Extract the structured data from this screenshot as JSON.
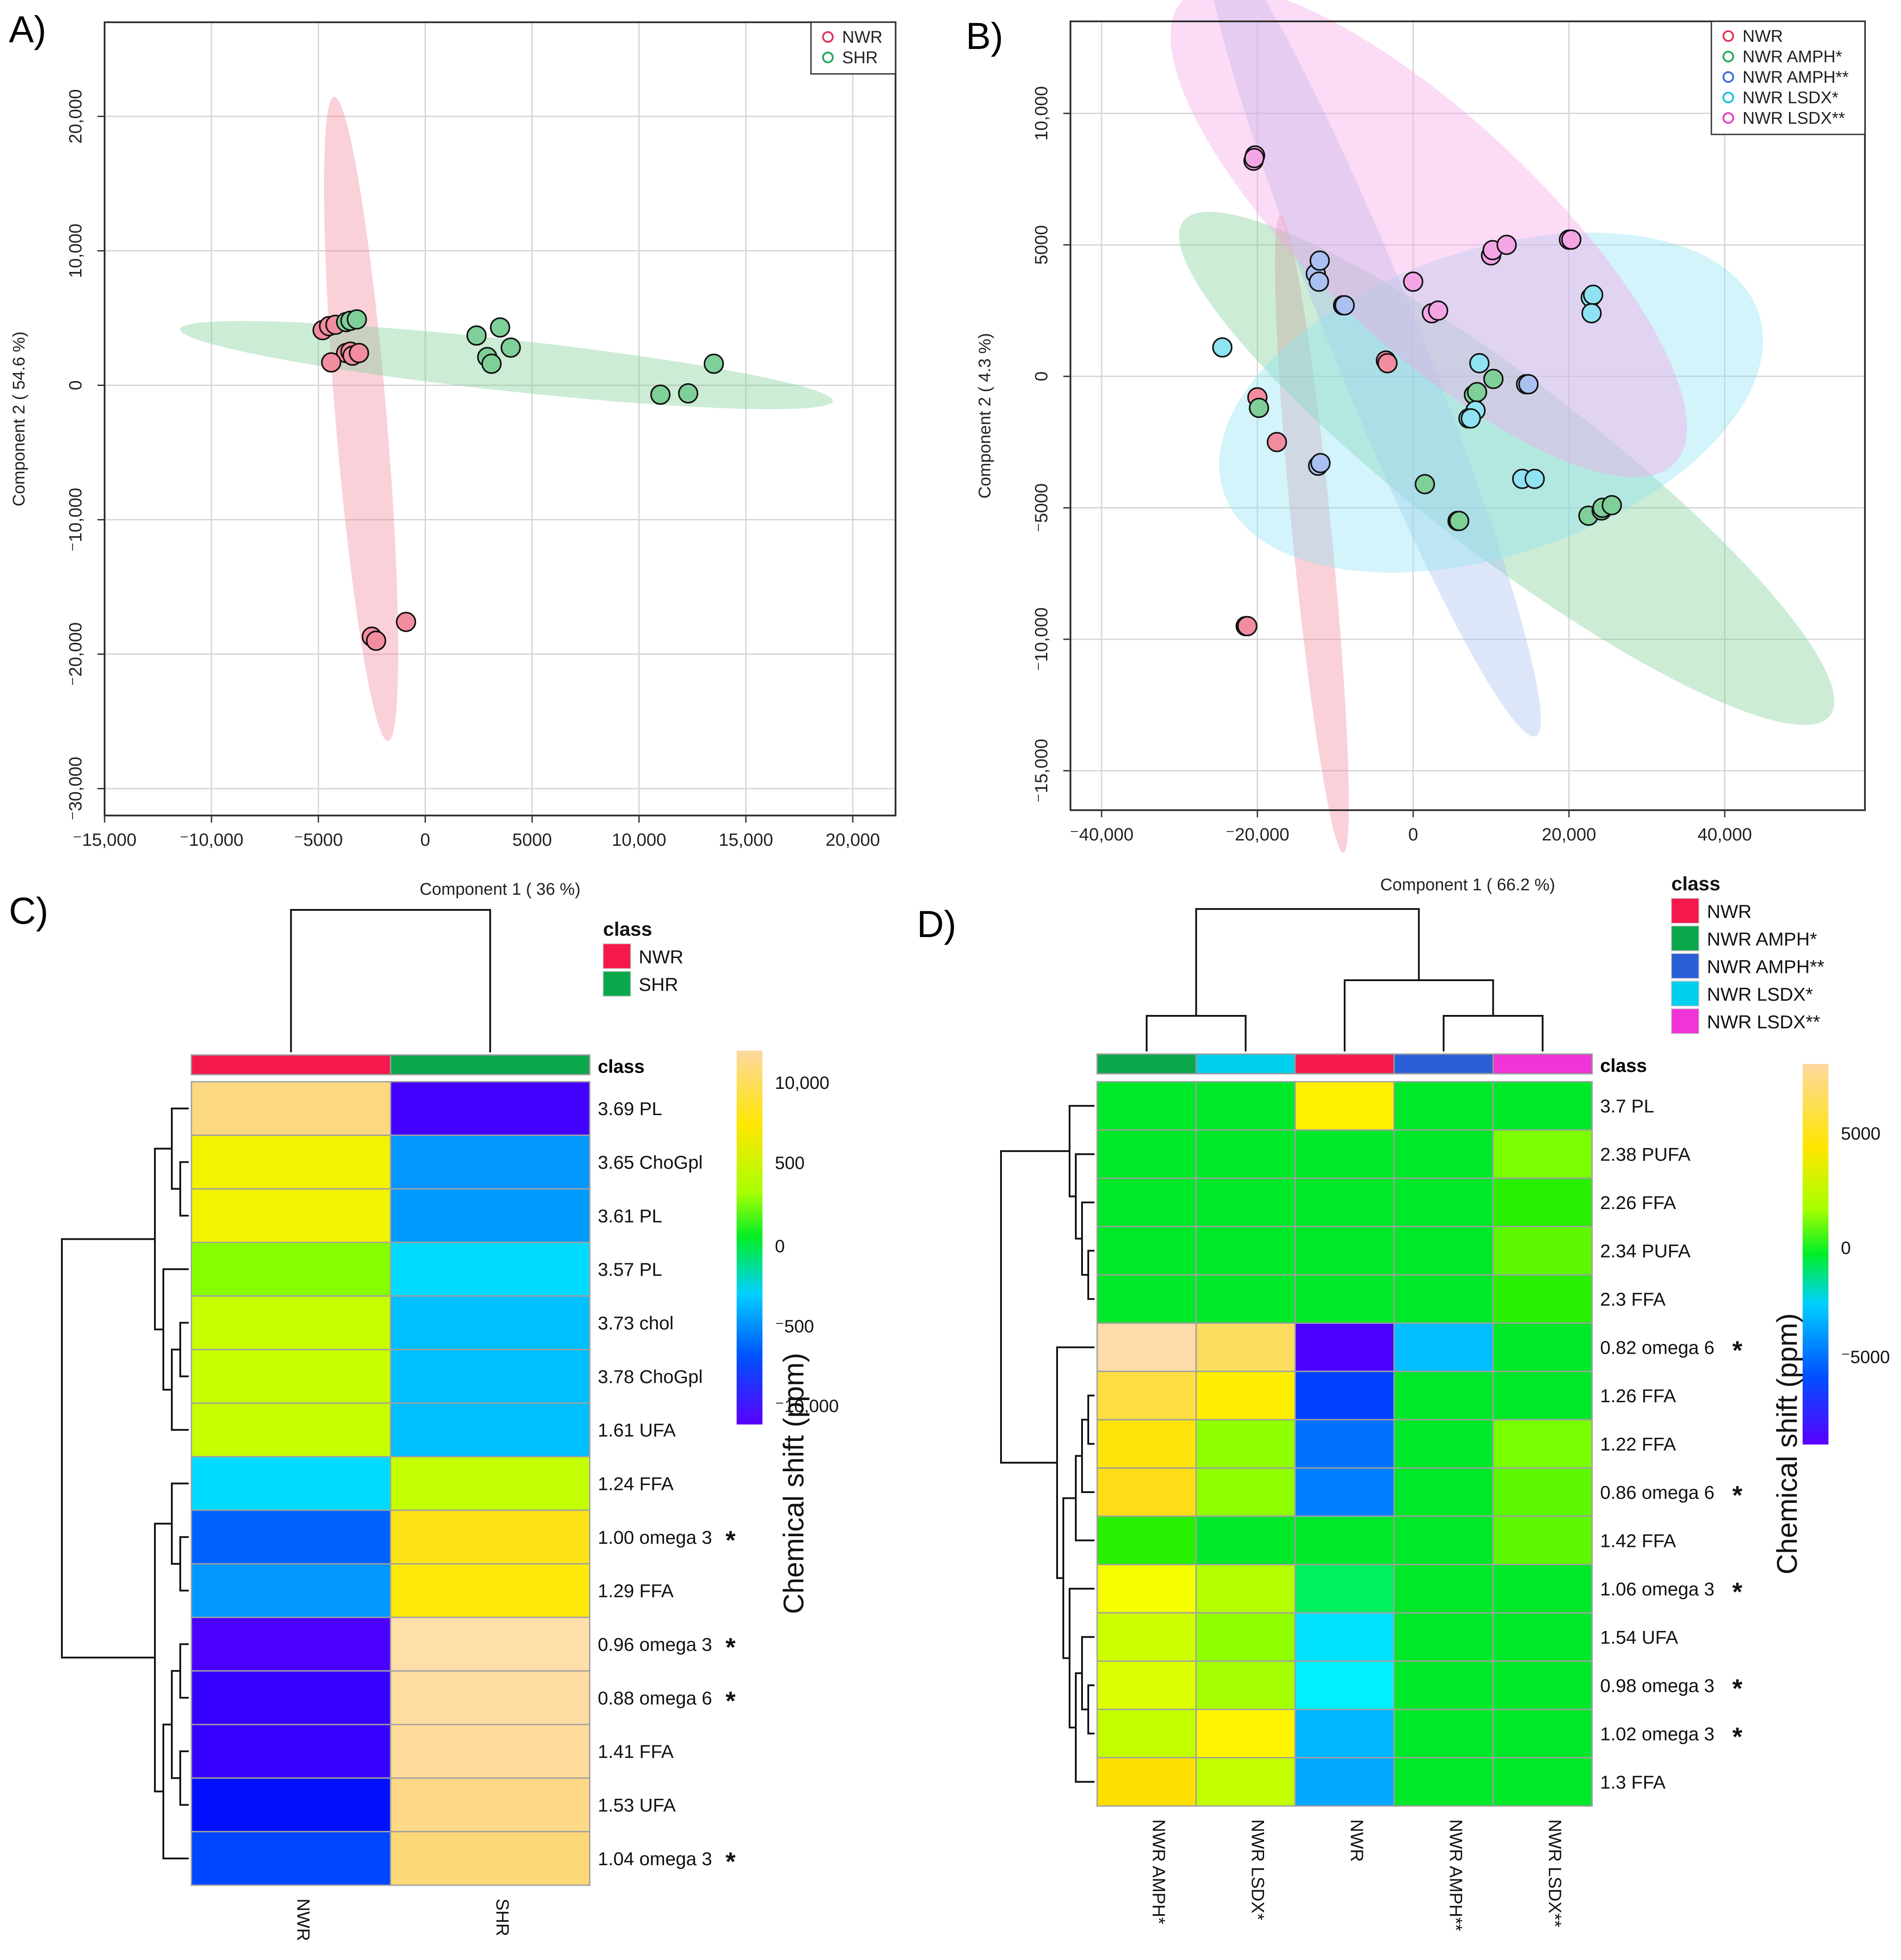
{
  "figure": {
    "panel_labels": [
      "A)",
      "B)",
      "C)",
      "D)"
    ]
  },
  "chart_data": [
    {
      "panel": "A",
      "type": "scatter",
      "xlabel": "Component 1 ( 36 %)",
      "ylabel": "Component 2 ( 54.6 %)",
      "xlim": [
        -15000,
        22000
      ],
      "ylim": [
        -32000,
        27000
      ],
      "xticks": [
        -15000,
        -10000,
        -5000,
        0,
        5000,
        10000,
        15000,
        20000
      ],
      "xtick_labels": [
        "-15,000",
        "-10,000",
        "-5000",
        "0",
        "5000",
        "10,000",
        "15,000",
        "20,000"
      ],
      "yticks": [
        -30000,
        -20000,
        -10000,
        0,
        10000,
        20000
      ],
      "ytick_labels": [
        "-30,000",
        "-20,000",
        "-10,000",
        "0",
        "10,000",
        "20,000"
      ],
      "legend_position": "top-right",
      "series": [
        {
          "name": "NWR",
          "color": "#e8315a",
          "fill": "#f28da0",
          "ellipse": {
            "cx": -3000,
            "cy": -2500,
            "angle": -87,
            "rx": 24000,
            "ry": 1200
          },
          "points": [
            [
              -4800,
              4100
            ],
            [
              -4500,
              4400
            ],
            [
              -4200,
              4500
            ],
            [
              -3700,
              2400
            ],
            [
              -3500,
              2500
            ],
            [
              -3400,
              2200
            ],
            [
              -3100,
              2400
            ],
            [
              -4400,
              1700
            ],
            [
              -2500,
              -18700
            ],
            [
              -2300,
              -19000
            ],
            [
              -900,
              -17600
            ]
          ]
        },
        {
          "name": "SHR",
          "color": "#22a85a",
          "fill": "#7fcf98",
          "ellipse": {
            "cx": 3800,
            "cy": 1500,
            "angle": -10,
            "rx": 15500,
            "ry": 1900
          },
          "points": [
            [
              -3700,
              4700
            ],
            [
              -3500,
              4800
            ],
            [
              -3200,
              4900
            ],
            [
              2400,
              3700
            ],
            [
              3500,
              4300
            ],
            [
              4000,
              2800
            ],
            [
              2900,
              2100
            ],
            [
              3100,
              1600
            ],
            [
              11000,
              -700
            ],
            [
              12300,
              -600
            ],
            [
              13500,
              1600
            ]
          ]
        }
      ]
    },
    {
      "panel": "B",
      "type": "scatter",
      "xlabel": "Component 1 ( 66.2 %)",
      "ylabel": "Component 2 ( 4.3 %)",
      "xlim": [
        -44000,
        58000
      ],
      "ylim": [
        -16500,
        13500
      ],
      "xticks": [
        -40000,
        -20000,
        0,
        20000,
        40000
      ],
      "xtick_labels": [
        "-40,000",
        "-20,000",
        "0",
        "20,000",
        "40,000"
      ],
      "yticks": [
        -15000,
        -10000,
        -5000,
        0,
        5000,
        10000
      ],
      "ytick_labels": [
        "-15,000",
        "-10,000",
        "-5000",
        "0",
        "5000",
        "10,000"
      ],
      "legend_position": "top-right",
      "series": [
        {
          "name": "NWR",
          "color": "#e8315a",
          "fill": "#f28da0",
          "ellipse": {
            "cx": -13000,
            "cy": -6000,
            "angle": -71,
            "rx": 12800,
            "ry": 2400
          },
          "points": [
            [
              -20000,
              -800
            ],
            [
              -17500,
              -2500
            ],
            [
              -3500,
              600
            ],
            [
              -3300,
              500
            ],
            [
              -21500,
              -9500
            ],
            [
              -21300,
              -9500
            ]
          ]
        },
        {
          "name": "NWR AMPH*",
          "color": "#22a85a",
          "fill": "#7fcf98",
          "ellipse": {
            "cx": 12000,
            "cy": -3500,
            "angle": -12,
            "rx": 43000,
            "ry": 4000
          },
          "points": [
            [
              -19800,
              -1200
            ],
            [
              1500,
              -4100
            ],
            [
              5700,
              -5500
            ],
            [
              5900,
              -5500
            ],
            [
              7800,
              -700
            ],
            [
              8200,
              -600
            ],
            [
              10300,
              -100
            ],
            [
              22500,
              -5300
            ],
            [
              24200,
              -5100
            ],
            [
              24300,
              -5000
            ],
            [
              25500,
              -4900
            ]
          ]
        },
        {
          "name": "NWR AMPH**",
          "color": "#4169d8",
          "fill": "#a9c0f0",
          "ellipse": {
            "cx": -5000,
            "cy": 1500,
            "angle": -35,
            "rx": 26000,
            "ry": 3600
          },
          "points": [
            [
              -12500,
              3900
            ],
            [
              -12000,
              4400
            ],
            [
              -12100,
              3600
            ],
            [
              -9000,
              2700
            ],
            [
              -8800,
              2700
            ],
            [
              -12200,
              -3400
            ],
            [
              -11900,
              -3300
            ],
            [
              14500,
              -300
            ],
            [
              14800,
              -300
            ]
          ]
        },
        {
          "name": "NWR LSDX*",
          "color": "#19c0e0",
          "fill": "#8fe3f2",
          "ellipse": {
            "cx": 10000,
            "cy": -1000,
            "angle": 4,
            "rx": 35000,
            "ry": 6000
          },
          "points": [
            [
              -24500,
              1100
            ],
            [
              8500,
              500
            ],
            [
              8000,
              -1300
            ],
            [
              7100,
              -1600
            ],
            [
              7400,
              -1600
            ],
            [
              14000,
              -3900
            ],
            [
              15600,
              -3900
            ],
            [
              22800,
              3000
            ],
            [
              23100,
              3100
            ],
            [
              22900,
              2400
            ]
          ]
        },
        {
          "name": "NWR LSDX**",
          "color": "#e83cc8",
          "fill": "#f5a5e6",
          "ellipse": {
            "cx": 2000,
            "cy": 5500,
            "angle": -13,
            "rx": 34000,
            "ry": 5500
          },
          "points": [
            [
              -20500,
              8200
            ],
            [
              -20300,
              8400
            ],
            [
              -20400,
              8300
            ],
            [
              0,
              3600
            ],
            [
              2400,
              2400
            ],
            [
              3200,
              2500
            ],
            [
              10000,
              4600
            ],
            [
              10200,
              4800
            ],
            [
              12000,
              5000
            ],
            [
              20000,
              5200
            ],
            [
              20300,
              5200
            ]
          ]
        }
      ]
    },
    {
      "panel": "C",
      "type": "heatmap",
      "columns": [
        "NWR",
        "SHR"
      ],
      "rows": [
        "3.69 PL",
        "3.65 ChoGpl",
        "3.61 PL",
        "3.57 PL",
        "3.73 chol",
        "3.78 ChoGpl",
        "1.61 UFA",
        "1.24 FFA",
        "1.00 omega 3",
        "1.29 FFA",
        "0.96 omega 3",
        "0.88 omega 6",
        "1.41 FFA",
        "1.53 UFA",
        "1.04 omega 3"
      ],
      "significant_rows": [
        "1.00 omega 3",
        "0.96 omega 3",
        "0.88 omega 6",
        "1.04 omega 3"
      ],
      "cells": [
        [
          "#fdd882",
          "#4200ff"
        ],
        [
          "#f3f200",
          "#0098ff"
        ],
        [
          "#f3f200",
          "#009bff"
        ],
        [
          "#86ff00",
          "#00dcff"
        ],
        [
          "#c7ff00",
          "#00bfff"
        ],
        [
          "#c7ff00",
          "#00c0ff"
        ],
        [
          "#c7ff00",
          "#00bfff"
        ],
        [
          "#00dcff",
          "#c3ff00"
        ],
        [
          "#0061ff",
          "#fde218"
        ],
        [
          "#0098ff",
          "#fdea0a"
        ],
        [
          "#4a00ff",
          "#fedfaa"
        ],
        [
          "#3600ff",
          "#fedca2"
        ],
        [
          "#3600ff",
          "#fedb98"
        ],
        [
          "#0010ff",
          "#fdd886"
        ],
        [
          "#0045ff",
          "#fdd876"
        ]
      ],
      "class_label": "class",
      "class_legend_title": "class",
      "class_legend": [
        {
          "name": "NWR",
          "color": "#f4184c"
        },
        {
          "name": "SHR",
          "color": "#0aa84b"
        }
      ],
      "color_scale_labels": [
        "10,000",
        "500",
        "0",
        "-500",
        "-10,000"
      ],
      "side_label": "Chemical shift (ppm)",
      "significance_mark": "*"
    },
    {
      "panel": "D",
      "type": "heatmap",
      "columns": [
        "NWR AMPH*",
        "NWR LSDX*",
        "NWR",
        "NWR AMPH**",
        "NWR LSDX**"
      ],
      "rows": [
        "3.7 PL",
        "2.38 PUFA",
        "2.26 FFA",
        "2.34 PUFA",
        "2.3 FFA",
        "0.82 omega 6",
        "1.26 FFA",
        "1.22 FFA",
        "0.86 omega 6",
        "1.42 FFA",
        "1.06 omega 3",
        "1.54 UFA",
        "0.98 omega 3",
        "1.02 omega 3",
        "1.3 FFA"
      ],
      "significant_rows": [
        "0.82 omega 6",
        "0.86 omega 6",
        "1.06 omega 3",
        "0.98 omega 3",
        "1.02 omega 3"
      ],
      "cells": [
        [
          "#00e82a",
          "#00e82a",
          "#fff200",
          "#00e82a",
          "#00e82a"
        ],
        [
          "#00e82a",
          "#00e82a",
          "#00e82a",
          "#00e82a",
          "#7cff00"
        ],
        [
          "#00e82a",
          "#00e82a",
          "#00e82a",
          "#00e82a",
          "#28f000"
        ],
        [
          "#00e82a",
          "#00e82a",
          "#00e82a",
          "#00e82a",
          "#5ef800"
        ],
        [
          "#00e82a",
          "#00e82a",
          "#00e82a",
          "#00e82a",
          "#28f000"
        ],
        [
          "#fedcaa",
          "#fedc60",
          "#4a00ff",
          "#00beff",
          "#00e82a"
        ],
        [
          "#fede42",
          "#ffee00",
          "#0040ff",
          "#00e82a",
          "#00e82a"
        ],
        [
          "#fee40a",
          "#90ff00",
          "#0070ff",
          "#00e82a",
          "#78ff00"
        ],
        [
          "#fedc18",
          "#90ff00",
          "#0080ff",
          "#00e82a",
          "#5ef800"
        ],
        [
          "#28f000",
          "#00e82a",
          "#00e82a",
          "#00e82a",
          "#5ef800"
        ],
        [
          "#f5ff00",
          "#b4ff00",
          "#00f060",
          "#00e82a",
          "#00e82a"
        ],
        [
          "#cdff00",
          "#90ff00",
          "#00e0ff",
          "#00e82a",
          "#00e82a"
        ],
        [
          "#dcff00",
          "#a6ff00",
          "#00f0ff",
          "#00e82a",
          "#00e82a"
        ],
        [
          "#c4ff00",
          "#fff400",
          "#00b8ff",
          "#00e82a",
          "#00e82a"
        ],
        [
          "#fee000",
          "#c4ff00",
          "#00a8ff",
          "#00e82a",
          "#00e82a"
        ]
      ],
      "class_label": "class",
      "class_legend_title": "class",
      "class_legend": [
        {
          "name": "NWR",
          "color": "#f4184c"
        },
        {
          "name": "NWR AMPH*",
          "color": "#0aa84b"
        },
        {
          "name": "NWR AMPH**",
          "color": "#2a5fd8"
        },
        {
          "name": "NWR LSDX*",
          "color": "#00cfee"
        },
        {
          "name": "NWR LSDX**",
          "color": "#f034d6"
        }
      ],
      "color_scale_labels": [
        "5000",
        "0",
        "-5000"
      ],
      "side_label": "Chemical shift (ppm)",
      "significance_mark": "*"
    }
  ]
}
